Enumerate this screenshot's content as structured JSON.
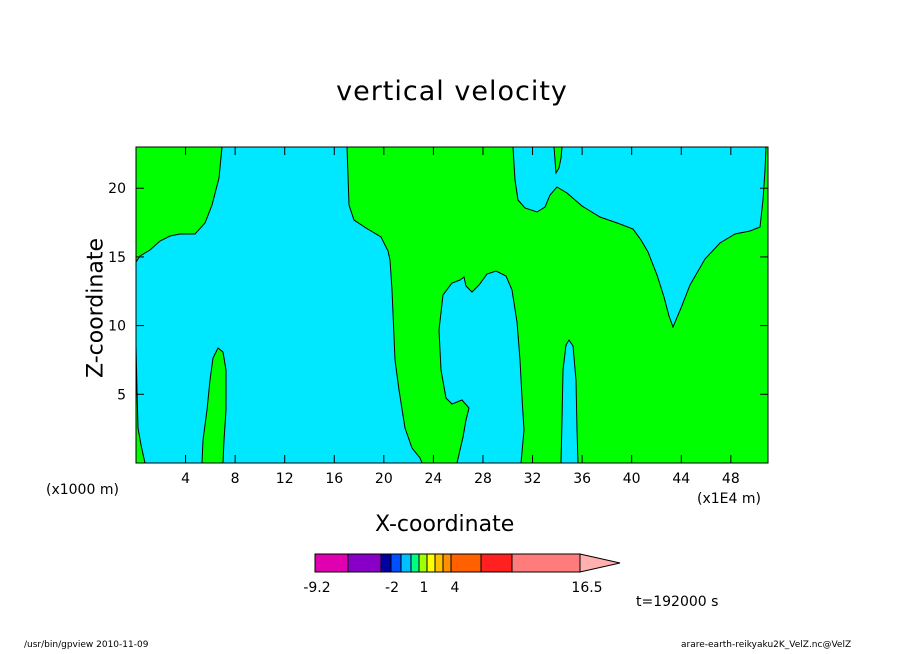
{
  "chart_data": {
    "type": "heatmap",
    "title": "vertical velocity",
    "xlabel": "X-coordinate",
    "ylabel": "Z-coordinate",
    "x_unit_left": "(x1000 m)",
    "x_unit_right": "(x1E4 m)",
    "xlim": [
      0,
      51
    ],
    "ylim": [
      0,
      23
    ],
    "x_ticks": [
      4,
      8,
      12,
      16,
      20,
      24,
      28,
      32,
      36,
      40,
      44,
      48
    ],
    "y_ticks": [
      5,
      10,
      15,
      20
    ],
    "regions": [
      {
        "level": "green",
        "color": "#00ff00"
      },
      {
        "level": "cyan",
        "color": "#00e8ff"
      }
    ],
    "colorbar": {
      "colors": [
        "#e000b0",
        "#8800c8",
        "#0000a0",
        "#0050ff",
        "#00c0ff",
        "#00ff80",
        "#a0ff00",
        "#ffff00",
        "#ffc000",
        "#ff9000",
        "#ff6000",
        "#ff2020",
        "#ff7c7c",
        "#ffb0b0"
      ],
      "tick_labels": [
        "-9.2",
        "-2",
        "1",
        "4",
        "16.5"
      ]
    },
    "time_label": "t=192000 s"
  },
  "footer": {
    "left": "/usr/bin/gpview   2010-11-09",
    "right": "arare-earth-reikyaku2K_VelZ.nc@VelZ"
  }
}
